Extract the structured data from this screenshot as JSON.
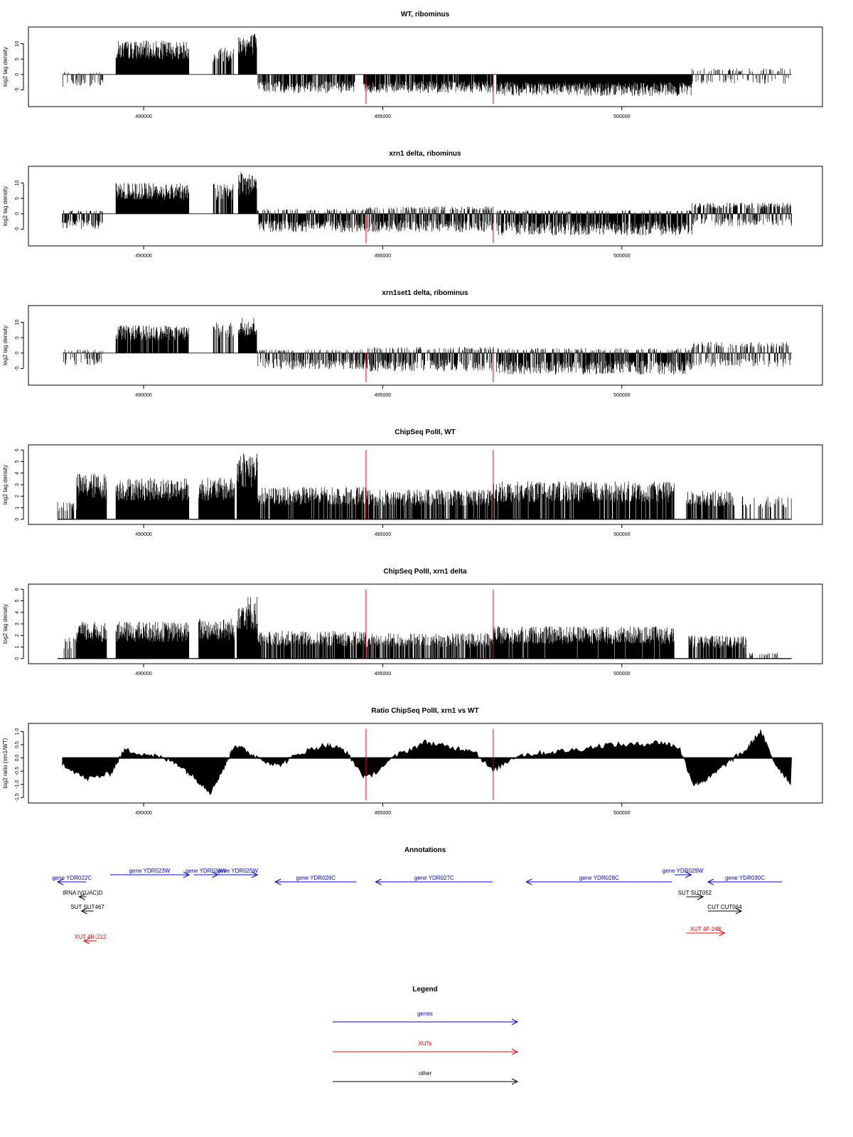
{
  "figure": {
    "x_ticks": [
      490000,
      495000,
      500000
    ],
    "x_range": [
      488200,
      503600
    ],
    "red_markers_x": [
      494650,
      497310
    ]
  },
  "panels": [
    {
      "title": "WT, ribominus",
      "ylabel": "log2 tag density",
      "ylim": [
        -9.5,
        14.5
      ],
      "yticks": [
        -5,
        0,
        5,
        10
      ],
      "style": "stranded",
      "red_span": [
        -9.5,
        0
      ],
      "segments": [
        {
          "x0": 488300,
          "x1": 489150,
          "lo": -4,
          "hi": 1,
          "density": 0.35
        },
        {
          "x0": 489420,
          "x1": 490950,
          "lo": 0,
          "hi": 11,
          "density": 1
        },
        {
          "x0": 491450,
          "x1": 491880,
          "lo": 0,
          "hi": 9,
          "density": 0.65
        },
        {
          "x0": 491980,
          "x1": 492370,
          "lo": 0,
          "hi": 13.5,
          "density": 1
        },
        {
          "x0": 492380,
          "x1": 494420,
          "lo": -6,
          "hi": 0,
          "density": 0.75
        },
        {
          "x0": 494600,
          "x1": 497320,
          "lo": -6,
          "hi": 0,
          "density": 0.9
        },
        {
          "x0": 497380,
          "x1": 501470,
          "lo": -7,
          "hi": 0,
          "density": 1
        },
        {
          "x0": 501470,
          "x1": 503550,
          "lo": -3,
          "hi": 2.5,
          "density": 0.4
        }
      ]
    },
    {
      "title": "xrn1 delta, ribominus",
      "ylabel": "log2 tag density",
      "ylim": [
        -9.5,
        14.5
      ],
      "yticks": [
        -5,
        0,
        5,
        10
      ],
      "style": "stranded",
      "red_span": [
        -9.5,
        0
      ],
      "segments": [
        {
          "x0": 488300,
          "x1": 489150,
          "lo": -5,
          "hi": 1.5,
          "density": 0.75
        },
        {
          "x0": 489420,
          "x1": 490950,
          "lo": 0,
          "hi": 10,
          "density": 1
        },
        {
          "x0": 491450,
          "x1": 491880,
          "lo": 0,
          "hi": 10,
          "density": 0.7
        },
        {
          "x0": 491980,
          "x1": 492370,
          "lo": 0,
          "hi": 13.5,
          "density": 1
        },
        {
          "x0": 492380,
          "x1": 494650,
          "lo": -6,
          "hi": 2,
          "density": 1
        },
        {
          "x0": 494650,
          "x1": 497320,
          "lo": -6,
          "hi": 3,
          "density": 1
        },
        {
          "x0": 497380,
          "x1": 501470,
          "lo": -7,
          "hi": 1.5,
          "density": 1
        },
        {
          "x0": 501470,
          "x1": 503550,
          "lo": -4,
          "hi": 4.5,
          "density": 0.9
        }
      ]
    },
    {
      "title": "xrn1set1 delta, ribominus",
      "ylabel": "log2 tag density",
      "ylim": [
        -9.5,
        14.5
      ],
      "yticks": [
        -5,
        0,
        5,
        10
      ],
      "style": "stranded",
      "red_span": [
        -9.5,
        0
      ],
      "segments": [
        {
          "x0": 488300,
          "x1": 489150,
          "lo": -4,
          "hi": 1.5,
          "density": 0.45
        },
        {
          "x0": 489420,
          "x1": 490950,
          "lo": 0,
          "hi": 9,
          "density": 0.9
        },
        {
          "x0": 491450,
          "x1": 491880,
          "lo": 0,
          "hi": 10,
          "density": 0.4
        },
        {
          "x0": 491980,
          "x1": 492370,
          "lo": 0,
          "hi": 12,
          "density": 1
        },
        {
          "x0": 492380,
          "x1": 494650,
          "lo": -5.5,
          "hi": 1.5,
          "density": 0.7
        },
        {
          "x0": 494650,
          "x1": 497320,
          "lo": -6,
          "hi": 2.5,
          "density": 0.85
        },
        {
          "x0": 497380,
          "x1": 501470,
          "lo": -7,
          "hi": 2,
          "density": 0.95
        },
        {
          "x0": 501470,
          "x1": 503550,
          "lo": -4.5,
          "hi": 4.5,
          "density": 0.7
        }
      ]
    },
    {
      "title": "ChipSeq PolII, WT",
      "ylabel": "log2 tag density",
      "ylim": [
        -0.2,
        6.2
      ],
      "yticks": [
        0,
        1,
        2,
        3,
        4,
        5,
        6
      ],
      "style": "positive",
      "red_span": [
        0,
        6
      ],
      "segments": [
        {
          "x0": 488200,
          "x1": 488600,
          "lo": 0,
          "hi": 1.6,
          "density": 0.4
        },
        {
          "x0": 488600,
          "x1": 489230,
          "lo": 0,
          "hi": 4,
          "density": 1
        },
        {
          "x0": 489420,
          "x1": 490950,
          "lo": 0,
          "hi": 3.6,
          "density": 1
        },
        {
          "x0": 491150,
          "x1": 491900,
          "lo": 0,
          "hi": 3.6,
          "density": 1
        },
        {
          "x0": 491950,
          "x1": 492380,
          "lo": 0,
          "hi": 6,
          "density": 1
        },
        {
          "x0": 492380,
          "x1": 494650,
          "lo": 0,
          "hi": 2.8,
          "density": 0.9
        },
        {
          "x0": 494650,
          "x1": 497320,
          "lo": 0,
          "hi": 2.6,
          "density": 0.8
        },
        {
          "x0": 497320,
          "x1": 501100,
          "lo": 0,
          "hi": 3.3,
          "density": 0.9
        },
        {
          "x0": 501350,
          "x1": 502350,
          "lo": 0,
          "hi": 2.5,
          "density": 0.8
        },
        {
          "x0": 502500,
          "x1": 503550,
          "lo": 0,
          "hi": 2,
          "density": 0.3
        }
      ]
    },
    {
      "title": "ChipSeq PolII, xrn1 delta",
      "ylabel": "log2 tag density",
      "ylim": [
        -0.2,
        6.2
      ],
      "yticks": [
        0,
        1,
        2,
        3,
        4,
        5,
        6
      ],
      "style": "positive",
      "red_span": [
        0,
        6
      ],
      "segments": [
        {
          "x0": 488200,
          "x1": 488600,
          "lo": 0,
          "hi": 1.8,
          "density": 0.3
        },
        {
          "x0": 488600,
          "x1": 489230,
          "lo": 0,
          "hi": 3.2,
          "density": 1
        },
        {
          "x0": 489420,
          "x1": 490950,
          "lo": 0,
          "hi": 3.2,
          "density": 1
        },
        {
          "x0": 491150,
          "x1": 491900,
          "lo": 0,
          "hi": 3.5,
          "density": 1
        },
        {
          "x0": 491950,
          "x1": 492380,
          "lo": 0,
          "hi": 5.5,
          "density": 1
        },
        {
          "x0": 492380,
          "x1": 494650,
          "lo": 0,
          "hi": 2.4,
          "density": 0.85
        },
        {
          "x0": 494650,
          "x1": 497320,
          "lo": 0,
          "hi": 2.2,
          "density": 0.75
        },
        {
          "x0": 497320,
          "x1": 501100,
          "lo": 0,
          "hi": 2.8,
          "density": 0.95
        },
        {
          "x0": 501400,
          "x1": 502600,
          "lo": 0,
          "hi": 2,
          "density": 0.75
        },
        {
          "x0": 502600,
          "x1": 503300,
          "lo": 0,
          "hi": 0.5,
          "density": 0.3
        }
      ]
    },
    {
      "title": "Ratio ChipSeq PolII, xrn1 vs WT",
      "ylabel": "log2 ratio (xrn1/WT)",
      "ylim": [
        -1.6,
        1.2
      ],
      "yticks": [
        -1.5,
        -1.0,
        -0.5,
        0.0,
        0.5,
        1.0
      ],
      "style": "ratio",
      "red_span": [
        -1.6,
        1.1
      ],
      "profile_x": [
        488300,
        488800,
        489300,
        489600,
        490200,
        490700,
        491100,
        491400,
        491700,
        491900,
        492300,
        492800,
        493300,
        493800,
        494200,
        494650,
        495300,
        495900,
        496400,
        496900,
        497300,
        497800,
        498400,
        499000,
        499700,
        500300,
        500800,
        501200,
        501500,
        501800,
        502200,
        502600,
        502900,
        503200,
        503550
      ],
      "profile_y": [
        -0.2,
        -0.8,
        -0.6,
        0.3,
        0.1,
        -0.2,
        -0.8,
        -1.3,
        -0.3,
        0.5,
        0.1,
        -0.3,
        0.2,
        0.5,
        0.3,
        -0.8,
        0.1,
        0.6,
        0.4,
        0.3,
        -0.5,
        0.1,
        0.2,
        0.3,
        0.5,
        0.5,
        0.6,
        0.4,
        -1.0,
        -0.8,
        -0.2,
        0.3,
        1.0,
        -0.2,
        -1.0
      ]
    }
  ],
  "annotations": {
    "title": "Annotations",
    "features": [
      {
        "label": "gene YDR022C",
        "color": "#0000ff",
        "x0": 488200,
        "x1": 488800,
        "dir": "left",
        "lane": 1
      },
      {
        "label": "gene YDR023W",
        "color": "#0000ff",
        "x0": 489300,
        "x1": 490950,
        "dir": "right",
        "lane": 0
      },
      {
        "label": "gene YDR024W",
        "color": "#0000ff",
        "x0": 491050,
        "x1": 491550,
        "dir": "right",
        "lane": 0
      },
      {
        "label": "gene YDR025W",
        "color": "#0000ff",
        "x0": 491550,
        "x1": 492380,
        "dir": "right",
        "lane": 0
      },
      {
        "label": "gene YDR026C",
        "color": "#0000ff",
        "x0": 492750,
        "x1": 494450,
        "dir": "left",
        "lane": 1
      },
      {
        "label": "gene YDR027C",
        "color": "#0000ff",
        "x0": 494850,
        "x1": 497300,
        "dir": "left",
        "lane": 1
      },
      {
        "label": "gene YDR028C",
        "color": "#0000ff",
        "x0": 498000,
        "x1": 501050,
        "dir": "left",
        "lane": 1
      },
      {
        "label": "gene YDR029W",
        "color": "#0000ff",
        "x0": 501100,
        "x1": 501450,
        "dir": "right",
        "lane": 0
      },
      {
        "label": "gene YDR030C",
        "color": "#0000ff",
        "x0": 501800,
        "x1": 503350,
        "dir": "left",
        "lane": 1
      },
      {
        "label": "tRNA tV(UAC)D",
        "color": "#000000",
        "x0": 488650,
        "x1": 488800,
        "dir": "left",
        "lane": 2
      },
      {
        "label": "SUT SUT467",
        "color": "#000000",
        "x0": 488700,
        "x1": 488950,
        "dir": "left",
        "lane": 3
      },
      {
        "label": "XUT 4R-212",
        "color": "#ff0000",
        "x0": 488750,
        "x1": 489020,
        "dir": "left",
        "lane": 5
      },
      {
        "label": "SUT SUT052",
        "color": "#000000",
        "x0": 501350,
        "x1": 501700,
        "dir": "right",
        "lane": 2
      },
      {
        "label": "CUT CUT064",
        "color": "#000000",
        "x0": 501800,
        "x1": 502500,
        "dir": "right",
        "lane": 3
      },
      {
        "label": "XUT 4F-248",
        "color": "#ff0000",
        "x0": 501350,
        "x1": 502150,
        "dir": "right",
        "lane": 4
      }
    ]
  },
  "legend": {
    "title": "Legend",
    "items": [
      {
        "label": "genes",
        "color": "#0000ff"
      },
      {
        "label": "XUTs",
        "color": "#ff0000"
      },
      {
        "label": "other",
        "color": "#000000"
      }
    ]
  }
}
